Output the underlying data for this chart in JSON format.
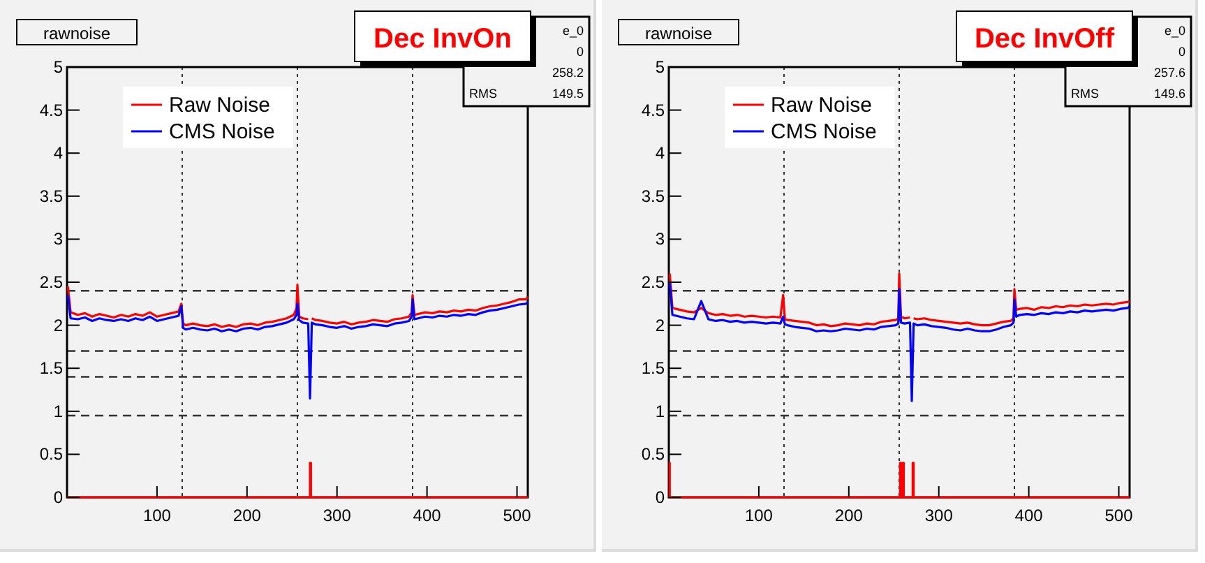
{
  "chart_data": [
    {
      "type": "line",
      "title": "rawnoise",
      "subtitle": "Dec InvOn",
      "annotations": [
        "e_0",
        "0",
        "258.2",
        "RMS 149.5"
      ],
      "legend": "top left",
      "xlim": [
        0,
        512
      ],
      "xticks": [
        100,
        200,
        300,
        400,
        500
      ],
      "ylim": [
        0,
        5
      ],
      "yticks": [
        0,
        0.5,
        1,
        1.5,
        2,
        2.5,
        3,
        3.5,
        4,
        4.5,
        5
      ],
      "x": [
        1,
        4,
        12,
        20,
        28,
        36,
        44,
        52,
        60,
        68,
        76,
        84,
        92,
        100,
        108,
        116,
        124,
        127,
        129,
        132,
        140,
        148,
        156,
        164,
        172,
        180,
        188,
        196,
        204,
        212,
        220,
        228,
        236,
        244,
        252,
        255,
        256,
        258,
        262,
        268,
        270,
        272,
        276,
        284,
        292,
        300,
        308,
        316,
        324,
        332,
        340,
        348,
        356,
        364,
        372,
        380,
        383,
        384,
        386,
        390,
        398,
        406,
        414,
        422,
        430,
        438,
        446,
        454,
        462,
        470,
        478,
        486,
        494,
        502,
        510,
        512
      ],
      "ref_lines": [
        {
          "axis": "x",
          "value": 128,
          "line_style": "dotted"
        },
        {
          "axis": "x",
          "value": 256,
          "line_style": "dotted"
        },
        {
          "axis": "x",
          "value": 384,
          "line_style": "dotted"
        },
        {
          "axis": "y",
          "value": 2.4,
          "line_style": "dashed"
        },
        {
          "axis": "y",
          "value": 1.7,
          "line_style": "dashed"
        },
        {
          "axis": "y",
          "value": 1.4,
          "line_style": "dashed"
        },
        {
          "axis": "y",
          "value": 0.95,
          "line_style": "dashed"
        }
      ],
      "series": [
        {
          "name": "Raw Noise",
          "color": "#ff0000",
          "values": [
            2.45,
            2.15,
            2.12,
            2.14,
            2.1,
            2.13,
            2.11,
            2.09,
            2.12,
            2.1,
            2.13,
            2.11,
            2.15,
            2.1,
            2.12,
            2.14,
            2.16,
            2.25,
            2.02,
            2.0,
            2.02,
            2.0,
            1.99,
            2.01,
            1.98,
            2.0,
            1.98,
            2.01,
            2.02,
            2.0,
            2.03,
            2.04,
            2.06,
            2.08,
            2.12,
            2.2,
            2.47,
            2.1,
            2.08,
            2.07,
            null,
            2.08,
            2.06,
            2.05,
            2.03,
            2.02,
            2.04,
            2.01,
            2.03,
            2.04,
            2.06,
            2.05,
            2.04,
            2.07,
            2.08,
            2.1,
            2.15,
            2.35,
            2.12,
            2.13,
            2.15,
            2.14,
            2.16,
            2.15,
            2.17,
            2.16,
            2.18,
            2.17,
            2.2,
            2.22,
            2.23,
            2.25,
            2.27,
            2.3,
            2.3,
            2.33
          ]
        },
        {
          "name": "CMS Noise",
          "color": "#0000ff",
          "values": [
            2.35,
            2.08,
            2.07,
            2.09,
            2.05,
            2.08,
            2.06,
            2.05,
            2.07,
            2.05,
            2.08,
            2.06,
            2.1,
            2.05,
            2.07,
            2.09,
            2.11,
            2.22,
            1.97,
            1.95,
            1.97,
            1.95,
            1.94,
            1.96,
            1.93,
            1.95,
            1.93,
            1.96,
            1.97,
            1.95,
            1.98,
            1.99,
            2.01,
            2.03,
            2.07,
            2.12,
            2.25,
            2.06,
            2.03,
            2.02,
            1.15,
            2.03,
            2.01,
            2.0,
            1.98,
            1.97,
            1.99,
            1.96,
            1.98,
            1.99,
            2.01,
            2.0,
            1.99,
            2.02,
            2.03,
            2.05,
            2.1,
            2.3,
            2.07,
            2.08,
            2.1,
            2.09,
            2.11,
            2.1,
            2.12,
            2.11,
            2.13,
            2.12,
            2.15,
            2.17,
            2.18,
            2.2,
            2.22,
            2.24,
            2.25,
            2.27
          ]
        },
        {
          "type": "step",
          "color": "#ff0000",
          "x": [
            0,
            270,
            271,
            512
          ],
          "values": [
            0,
            0.4,
            0,
            0
          ]
        }
      ]
    },
    {
      "type": "line",
      "title": "rawnoise",
      "subtitle": "Dec InvOff",
      "annotations": [
        "e_0",
        "0",
        "257.6",
        "RMS 149.6"
      ],
      "legend": "top left",
      "xlim": [
        0,
        512
      ],
      "xticks": [
        100,
        200,
        300,
        400,
        500
      ],
      "ylim": [
        0,
        5
      ],
      "yticks": [
        0,
        0.5,
        1,
        1.5,
        2,
        2.5,
        3,
        3.5,
        4,
        4.5,
        5
      ],
      "x": [
        1,
        4,
        12,
        20,
        28,
        36,
        44,
        52,
        60,
        68,
        76,
        84,
        92,
        100,
        108,
        116,
        124,
        127,
        129,
        132,
        140,
        148,
        156,
        164,
        172,
        180,
        188,
        196,
        204,
        212,
        220,
        228,
        236,
        244,
        252,
        255,
        256,
        258,
        262,
        268,
        270,
        272,
        276,
        284,
        292,
        300,
        308,
        316,
        324,
        332,
        340,
        348,
        356,
        364,
        372,
        380,
        383,
        384,
        386,
        390,
        398,
        406,
        414,
        422,
        430,
        438,
        446,
        454,
        462,
        470,
        478,
        486,
        494,
        502,
        510,
        512
      ],
      "ref_lines": [
        {
          "axis": "x",
          "value": 128,
          "line_style": "dotted"
        },
        {
          "axis": "x",
          "value": 256,
          "line_style": "dotted"
        },
        {
          "axis": "x",
          "value": 384,
          "line_style": "dotted"
        },
        {
          "axis": "y",
          "value": 2.4,
          "line_style": "dashed"
        },
        {
          "axis": "y",
          "value": 1.7,
          "line_style": "dashed"
        },
        {
          "axis": "y",
          "value": 1.4,
          "line_style": "dashed"
        },
        {
          "axis": "y",
          "value": 0.95,
          "line_style": "dashed"
        }
      ],
      "series": [
        {
          "name": "Raw Noise",
          "color": "#ff0000",
          "values": [
            2.6,
            2.2,
            2.18,
            2.16,
            2.15,
            2.2,
            2.14,
            2.12,
            2.13,
            2.11,
            2.12,
            2.1,
            2.11,
            2.1,
            2.09,
            2.1,
            2.09,
            2.35,
            2.07,
            2.06,
            2.05,
            2.04,
            2.03,
            2.0,
            2.01,
            1.99,
            2.0,
            2.02,
            2.01,
            2.0,
            2.02,
            2.01,
            2.04,
            2.05,
            2.06,
            2.08,
            2.6,
            2.1,
            2.08,
            2.09,
            null,
            2.08,
            2.07,
            2.08,
            2.06,
            2.05,
            2.04,
            2.03,
            2.02,
            2.03,
            2.01,
            2.0,
            2.0,
            2.02,
            2.04,
            2.05,
            2.08,
            2.42,
            2.18,
            2.19,
            2.2,
            2.18,
            2.21,
            2.2,
            2.22,
            2.21,
            2.23,
            2.22,
            2.24,
            2.23,
            2.24,
            2.25,
            2.24,
            2.26,
            2.27,
            2.28
          ]
        },
        {
          "name": "CMS Noise",
          "color": "#0000ff",
          "values": [
            2.5,
            2.12,
            2.1,
            2.08,
            2.07,
            2.28,
            2.07,
            2.05,
            2.06,
            2.04,
            2.05,
            2.03,
            2.04,
            2.03,
            2.02,
            2.03,
            2.02,
            2.1,
            2.01,
            2.0,
            1.98,
            1.97,
            1.96,
            1.93,
            1.94,
            1.93,
            1.94,
            1.96,
            1.95,
            1.94,
            1.96,
            1.95,
            1.98,
            1.99,
            2.0,
            2.02,
            2.42,
            2.03,
            2.02,
            2.03,
            1.12,
            2.02,
            2.0,
            2.01,
            1.99,
            1.98,
            1.97,
            1.95,
            1.94,
            1.96,
            1.94,
            1.93,
            1.93,
            1.95,
            1.98,
            2.0,
            2.03,
            2.3,
            2.1,
            2.12,
            2.13,
            2.12,
            2.14,
            2.13,
            2.15,
            2.14,
            2.16,
            2.15,
            2.17,
            2.16,
            2.17,
            2.18,
            2.17,
            2.19,
            2.2,
            2.22
          ]
        },
        {
          "type": "step",
          "color": "#ff0000",
          "x": [
            0,
            1,
            257,
            258,
            260,
            261,
            271,
            272,
            512
          ],
          "values": [
            0.4,
            0,
            0.4,
            0,
            0.4,
            0,
            0.4,
            0,
            0
          ]
        }
      ]
    }
  ]
}
